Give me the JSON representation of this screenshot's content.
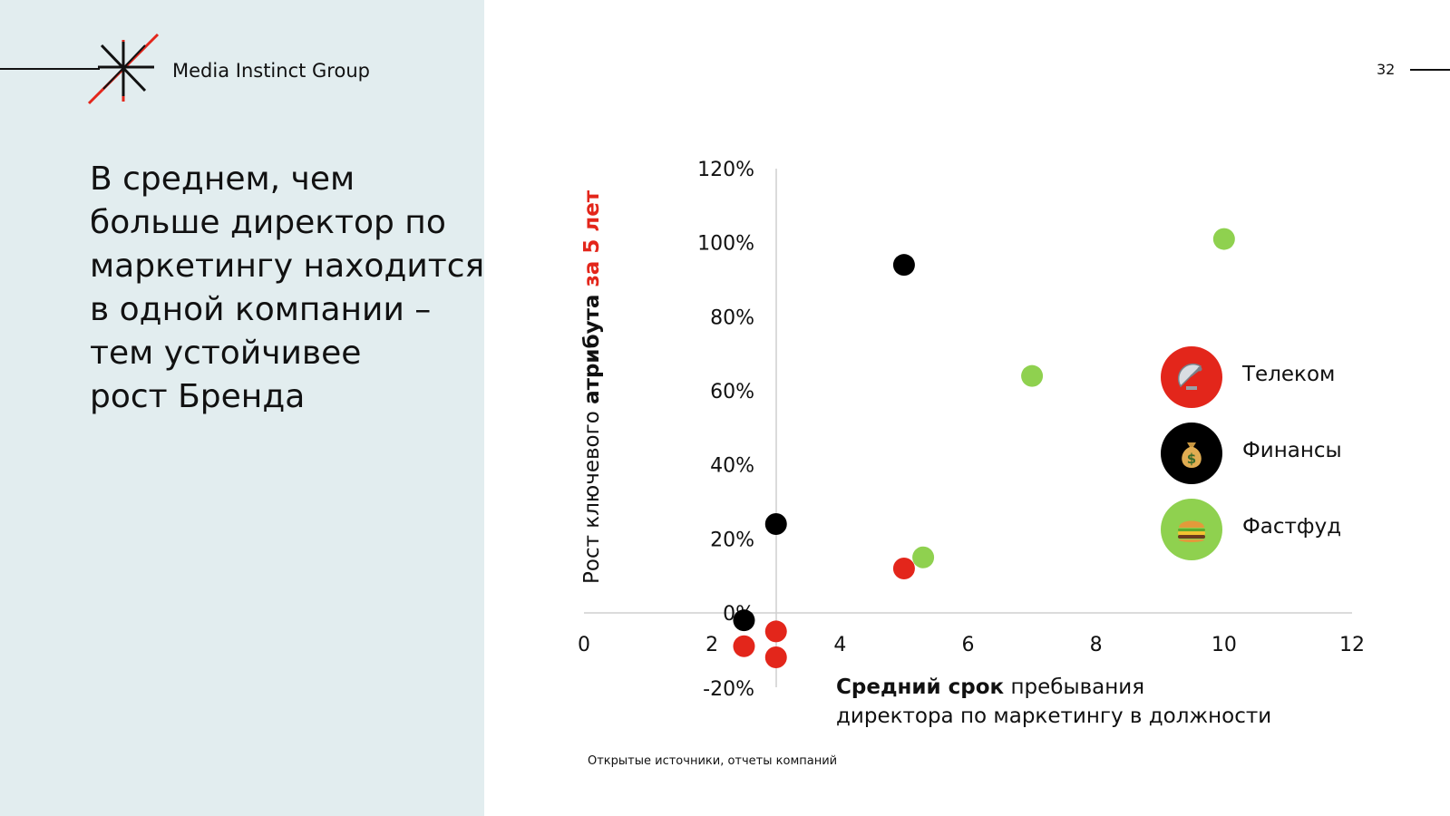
{
  "brand": {
    "name": "Media Instinct Group",
    "logo_icon": "asterisk-star-logo",
    "accent_color": "#e3261b"
  },
  "headline": {
    "lines": [
      "В среднем, чем",
      "больше директор по",
      "маркетингу находится",
      "в одной компании –",
      "тем устойчивее",
      "рост Бренда"
    ]
  },
  "page_number": "32",
  "source_note": "Открытые источники, отчеты компаний",
  "chart_data": {
    "type": "scatter",
    "title": "",
    "ylabel": {
      "part1": "Рост ключевого ",
      "part2": "атрибута",
      "part3": " за 5 лет"
    },
    "xlabel": {
      "line1_bold": "Средний срок",
      "line1_rest": " пребывания",
      "line2": "директора по маркетингу в должности"
    },
    "xlim": [
      0,
      12
    ],
    "ylim": [
      -20,
      120
    ],
    "x_ticks": [
      "0",
      "2",
      "4",
      "6",
      "8",
      "10",
      "12"
    ],
    "y_ticks": [
      "120%",
      "100%",
      "80%",
      "60%",
      "40%",
      "20%",
      "0%",
      "-20%"
    ],
    "grid": false,
    "legend_position": "right",
    "series": [
      {
        "name": "Телеком",
        "color": "#e3261b",
        "icon": "satellite-dish-icon",
        "points": [
          {
            "x": 2.5,
            "y": -9
          },
          {
            "x": 3.0,
            "y": -5
          },
          {
            "x": 3.0,
            "y": -12
          },
          {
            "x": 5.0,
            "y": 12
          }
        ]
      },
      {
        "name": "Финансы",
        "color": "#000000",
        "icon": "money-bag-icon",
        "points": [
          {
            "x": 2.5,
            "y": -2
          },
          {
            "x": 3.0,
            "y": 24
          },
          {
            "x": 5.0,
            "y": 94
          }
        ]
      },
      {
        "name": "Фастфуд",
        "color": "#8fd14f",
        "icon": "burger-icon",
        "points": [
          {
            "x": 5.3,
            "y": 15
          },
          {
            "x": 7.0,
            "y": 64
          },
          {
            "x": 10.0,
            "y": 101
          }
        ]
      }
    ]
  }
}
